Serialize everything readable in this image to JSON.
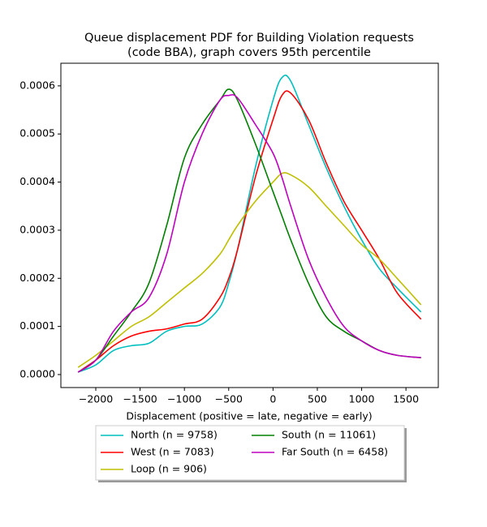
{
  "chart_data": {
    "type": "line",
    "title": [
      "Queue displacement PDF for Building Violation  requests",
      "(code BBA), graph covers 95th percentile"
    ],
    "xlabel": "Displacement (positive = late, negative = early)",
    "x": [
      -2200,
      -2000,
      -1800,
      -1600,
      -1400,
      -1200,
      -1000,
      -800,
      -600,
      -500,
      -400,
      -200,
      0,
      100,
      200,
      400,
      600,
      800,
      1000,
      1200,
      1400,
      1670
    ],
    "series": [
      {
        "name": "North (n = 9758)",
        "color": "#00bfbf",
        "values": [
          5e-06,
          2e-05,
          5e-05,
          6e-05,
          6.5e-05,
          9e-05,
          0.0001,
          0.000105,
          0.00014,
          0.00019,
          0.00026,
          0.00043,
          0.00057,
          0.000617,
          0.00061,
          0.00052,
          0.00043,
          0.00035,
          0.00028,
          0.00022,
          0.00018,
          0.00013
        ]
      },
      {
        "name": "West (n = 7083)",
        "color": "#ff0000",
        "values": [
          5e-06,
          3e-05,
          6e-05,
          8e-05,
          9e-05,
          9.5e-05,
          0.000105,
          0.000115,
          0.00016,
          0.0002,
          0.00026,
          0.00041,
          0.00053,
          0.00058,
          0.000585,
          0.00053,
          0.00044,
          0.00036,
          0.0003,
          0.00024,
          0.00017,
          0.000115
        ]
      },
      {
        "name": "Loop (n = 906)",
        "color": "#bfbf00",
        "values": [
          1.5e-05,
          4e-05,
          7e-05,
          0.0001,
          0.00012,
          0.00015,
          0.00018,
          0.00021,
          0.00025,
          0.00028,
          0.00031,
          0.00036,
          0.0004,
          0.000418,
          0.000415,
          0.00039,
          0.00035,
          0.00031,
          0.00027,
          0.00024,
          0.0002,
          0.000145
        ]
      },
      {
        "name": "South (n = 11061)",
        "color": "#008000",
        "values": [
          5e-06,
          3e-05,
          8e-05,
          0.00013,
          0.00019,
          0.00031,
          0.00045,
          0.00052,
          0.00057,
          0.000593,
          0.00057,
          0.00048,
          0.00038,
          0.00033,
          0.00028,
          0.00019,
          0.00012,
          9e-05,
          7e-05,
          5e-05,
          4e-05,
          3.5e-05
        ]
      },
      {
        "name": "Far South (n = 6458)",
        "color": "#bf00bf",
        "values": [
          5e-06,
          3e-05,
          9e-05,
          0.00013,
          0.00016,
          0.00025,
          0.0004,
          0.0005,
          0.00057,
          0.00058,
          0.000575,
          0.00052,
          0.00046,
          0.00041,
          0.00035,
          0.00024,
          0.00016,
          0.0001,
          7e-05,
          5e-05,
          4e-05,
          3.5e-05
        ]
      }
    ],
    "xlim": [
      -2394,
      1865
    ],
    "ylim": [
      -2.7e-05,
      0.000647
    ],
    "xticks": [
      {
        "value": -2000,
        "label": "−2000"
      },
      {
        "value": -1500,
        "label": "−1500"
      },
      {
        "value": -1000,
        "label": "−1000"
      },
      {
        "value": -500,
        "label": "−500"
      },
      0,
      500,
      1000,
      1500
    ],
    "yticks": [
      {
        "value": 0,
        "label": "0.0000"
      },
      {
        "value": 0.0001,
        "label": "0.0001"
      },
      {
        "value": 0.0002,
        "label": "0.0002"
      },
      {
        "value": 0.0003,
        "label": "0.0003"
      },
      {
        "value": 0.0004,
        "label": "0.0004"
      },
      {
        "value": 0.0005,
        "label": "0.0005"
      },
      {
        "value": 0.0006,
        "label": "0.0006"
      }
    ],
    "legend": "below"
  }
}
